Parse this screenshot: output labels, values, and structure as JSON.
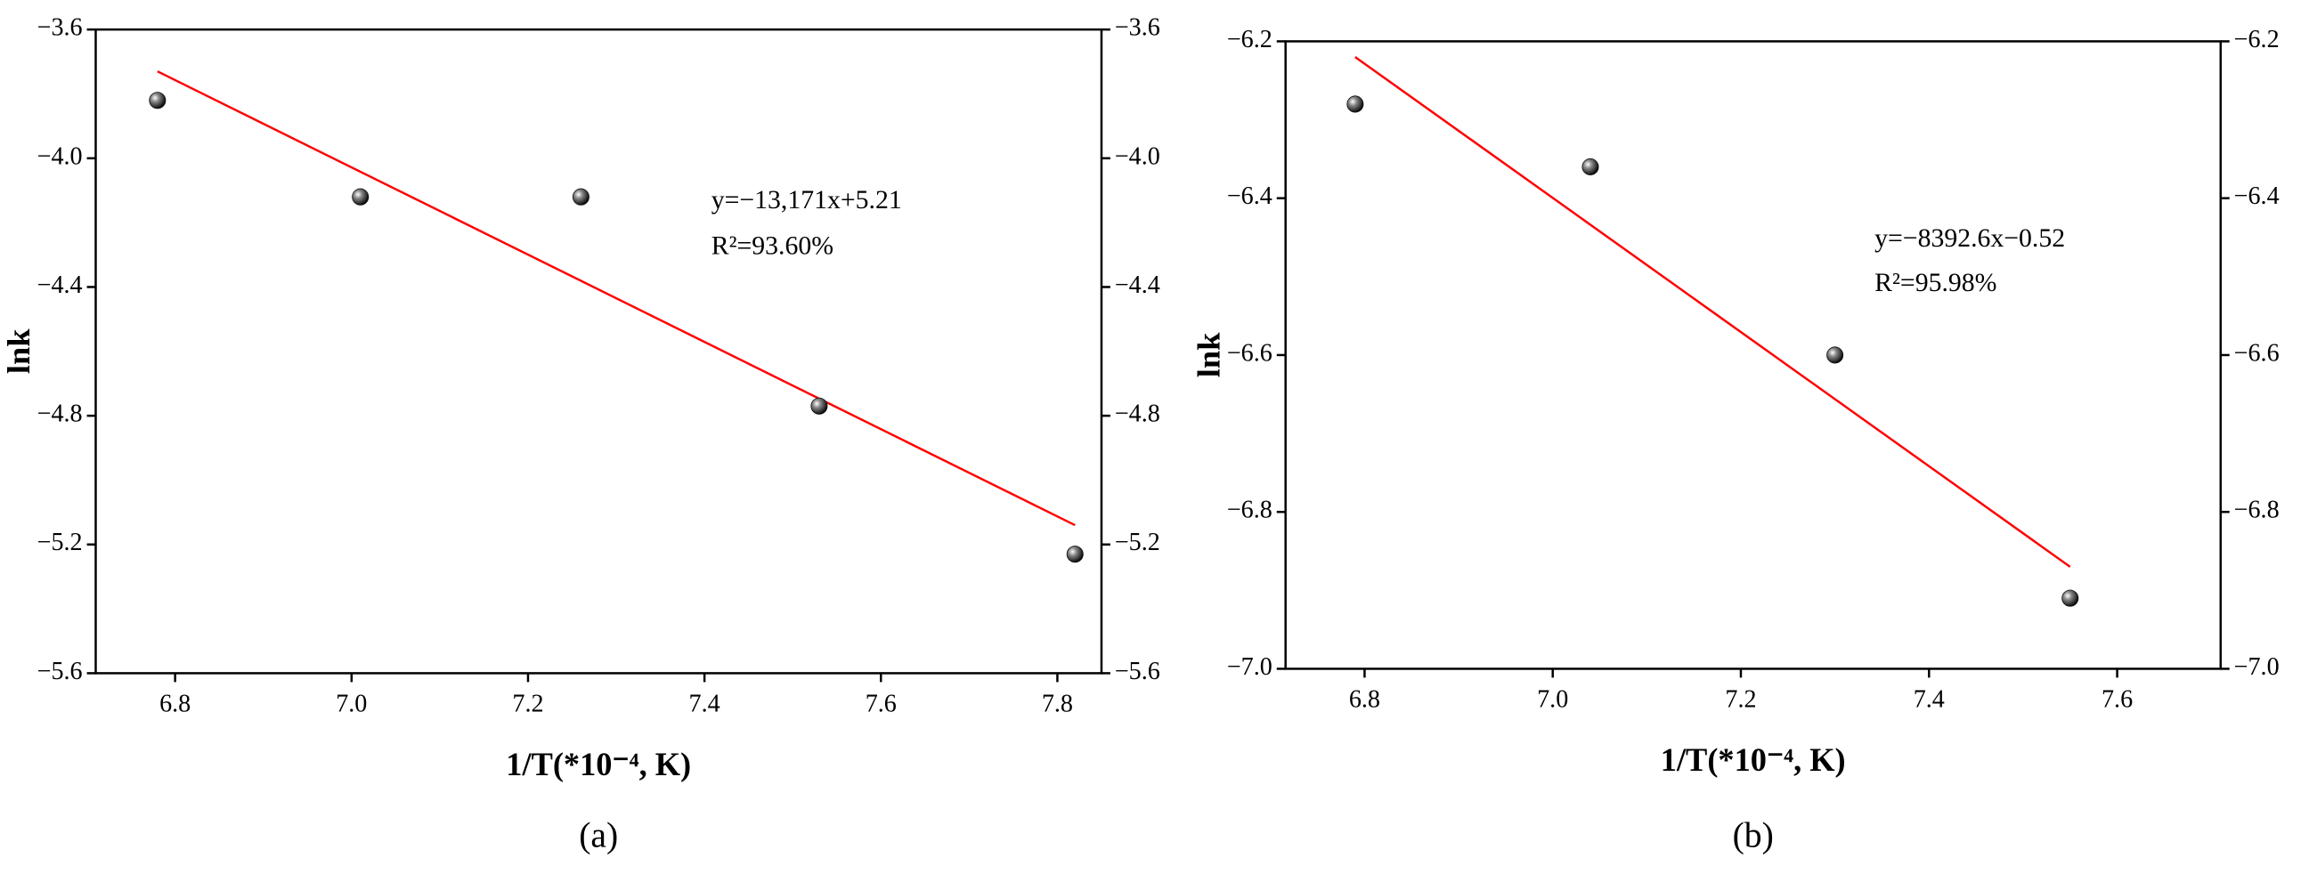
{
  "chart_data": [
    {
      "type": "scatter",
      "panel": "(a)",
      "xlabel": "1/T(*10⁻⁴, K)",
      "ylabel": "lnk",
      "x": [
        6.78,
        7.01,
        7.26,
        7.53,
        7.82
      ],
      "values": [
        -3.82,
        -4.12,
        -4.12,
        -4.77,
        -5.23
      ],
      "color": "#111111",
      "fit": {
        "x": [
          6.78,
          7.82
        ],
        "y": [
          -3.73,
          -5.14
        ],
        "color": "#ff0000"
      },
      "equation": "y=−13,171x+5.21",
      "r2": "R²=93.60%",
      "xlim": [
        6.71,
        7.85
      ],
      "ylim": [
        -5.6,
        -3.6
      ],
      "xticks": [
        6.8,
        {
          "value": 7,
          "label": "7.0"
        },
        7.2,
        7.4,
        7.6,
        7.8
      ],
      "yticks": [
        {
          "value": -5.6,
          "label": "−5.6"
        },
        {
          "value": -5.2,
          "label": "−5.2"
        },
        {
          "value": -4.8,
          "label": "−4.8"
        },
        {
          "value": -4.4,
          "label": "−4.4"
        },
        {
          "value": -4,
          "label": "−4.0"
        },
        {
          "value": -3.6,
          "label": "−3.6"
        }
      ],
      "mirror_y": true
    },
    {
      "type": "scatter",
      "panel": "(b)",
      "xlabel": "1/T(*10⁻⁴, K)",
      "ylabel": "lnk",
      "x": [
        6.79,
        7.04,
        7.3,
        7.55
      ],
      "values": [
        -6.28,
        -6.36,
        -6.6,
        -6.91
      ],
      "color": "#111111",
      "fit": {
        "x": [
          6.79,
          7.55
        ],
        "y": [
          -6.22,
          -6.87
        ],
        "color": "#ff0000"
      },
      "equation": "y=−8392.6x−0.52",
      "r2": "R²=95.98%",
      "xlim": [
        6.716,
        7.71
      ],
      "ylim": [
        -7,
        -6.2
      ],
      "xticks": [
        6.8,
        {
          "value": 7,
          "label": "7.0"
        },
        7.2,
        7.4,
        7.6
      ],
      "yticks": [
        {
          "value": -7,
          "label": "−7.0"
        },
        {
          "value": -6.8,
          "label": "−6.8"
        },
        {
          "value": -6.6,
          "label": "−6.6"
        },
        {
          "value": -6.4,
          "label": "−6.4"
        },
        {
          "value": -6.2,
          "label": "−6.2"
        }
      ],
      "mirror_y": true
    }
  ]
}
